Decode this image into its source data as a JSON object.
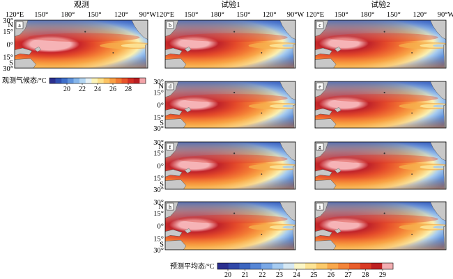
{
  "column_titles": [
    "观测",
    "试验1",
    "试验2"
  ],
  "lon_ticks": [
    "120°E",
    "150°",
    "180°",
    "150°",
    "120°",
    "90°W"
  ],
  "lat_ticks": [
    "30°",
    "N",
    "15°",
    "0°",
    "15°",
    "S",
    "30°"
  ],
  "panels": [
    {
      "label": "a",
      "kind": "obs"
    },
    {
      "label": "b",
      "kind": "model"
    },
    {
      "label": "c",
      "kind": "model"
    },
    {
      "label": "d",
      "kind": "model"
    },
    {
      "label": "e",
      "kind": "model"
    },
    {
      "label": "f",
      "kind": "model"
    },
    {
      "label": "g",
      "kind": "model"
    },
    {
      "label": "h",
      "kind": "model"
    },
    {
      "label": "i",
      "kind": "model"
    }
  ],
  "obs_colorbar": {
    "title": "观测气候态/°C",
    "ticks": [
      "20",
      "22",
      "24",
      "26",
      "28"
    ],
    "colors": [
      "#2b2f8f",
      "#2f4fb0",
      "#3f6fca",
      "#5f93dc",
      "#86b6ea",
      "#b4d6f2",
      "#e6f0f4",
      "#fbf3b8",
      "#fde08a",
      "#fcc362",
      "#f9a045",
      "#f27a33",
      "#e8542a",
      "#d32f24",
      "#b81d21",
      "#f2a3a8"
    ]
  },
  "pred_colorbar": {
    "title": "预测平均态/°C",
    "ticks": [
      "20",
      "21",
      "22",
      "23",
      "24",
      "25",
      "26",
      "27",
      "28",
      "29"
    ],
    "colors": [
      "#2b2f8f",
      "#3048a8",
      "#3c66c0",
      "#5686d6",
      "#7aa8e6",
      "#a6cbf0",
      "#d6e8f3",
      "#fbf6c6",
      "#fde495",
      "#fcca6a",
      "#f9a84c",
      "#f4853a",
      "#e95e2c",
      "#d93a25",
      "#bd2022",
      "#f3aeb2"
    ]
  }
}
